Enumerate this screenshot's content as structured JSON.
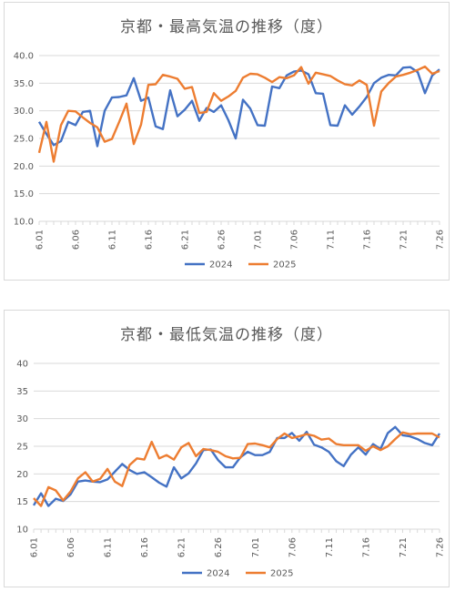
{
  "colors": {
    "s2024": "#4472c4",
    "s2025": "#ed7d31",
    "grid": "#d9d9d9",
    "text": "#595959"
  },
  "chart_data": [
    {
      "type": "line",
      "title": "京都・最高気温の推移（度）",
      "ylim": [
        10,
        40
      ],
      "yticks": [
        "10.0",
        "15.0",
        "20.0",
        "25.0",
        "30.0",
        "35.0",
        "40.0"
      ],
      "xticks": [
        "6.01",
        "6.06",
        "6.11",
        "6.16",
        "6.21",
        "6.26",
        "7.01",
        "7.06",
        "7.11",
        "7.16",
        "7.21",
        "7.26"
      ],
      "x": [
        "6.01",
        "6.02",
        "6.03",
        "6.04",
        "6.05",
        "6.06",
        "6.07",
        "6.08",
        "6.09",
        "6.10",
        "6.11",
        "6.12",
        "6.13",
        "6.14",
        "6.15",
        "6.16",
        "6.17",
        "6.18",
        "6.19",
        "6.20",
        "6.21",
        "6.22",
        "6.23",
        "6.24",
        "6.25",
        "6.26",
        "6.27",
        "6.28",
        "6.29",
        "6.30",
        "7.01",
        "7.02",
        "7.03",
        "7.04",
        "7.05",
        "7.06",
        "7.07",
        "7.08",
        "7.09",
        "7.10",
        "7.11",
        "7.12",
        "7.13",
        "7.14",
        "7.15",
        "7.16",
        "7.17",
        "7.18",
        "7.19",
        "7.20",
        "7.21",
        "7.22",
        "7.23",
        "7.24",
        "7.25",
        "7.26"
      ],
      "legend_position": "bottom",
      "series": [
        {
          "name": "2024",
          "values": [
            28.0,
            25.8,
            23.8,
            24.5,
            28.0,
            27.4,
            29.8,
            30.0,
            23.6,
            30.0,
            32.4,
            32.5,
            32.8,
            35.9,
            31.8,
            32.4,
            27.2,
            26.7,
            33.7,
            29.0,
            30.2,
            31.8,
            28.2,
            30.5,
            29.8,
            31.0,
            28.3,
            25.0,
            32.0,
            30.4,
            27.4,
            27.3,
            34.4,
            34.1,
            36.4,
            37.1,
            37.3,
            36.6,
            33.2,
            33.1,
            27.4,
            27.3,
            31.0,
            29.3,
            30.8,
            32.5,
            35.0,
            36.0,
            36.5,
            36.4,
            37.8,
            37.9,
            37.0,
            33.2,
            36.4,
            37.5
          ]
        },
        {
          "name": "2025",
          "values": [
            22.4,
            28.0,
            20.8,
            27.4,
            30.0,
            29.9,
            28.8,
            27.8,
            27.0,
            24.4,
            24.9,
            28.0,
            31.3,
            24.0,
            27.5,
            34.7,
            34.8,
            36.5,
            36.2,
            35.8,
            34.0,
            34.3,
            29.6,
            29.8,
            33.2,
            31.8,
            32.6,
            33.6,
            36.0,
            36.7,
            36.6,
            36.0,
            35.2,
            36.1,
            35.9,
            36.4,
            37.9,
            34.9,
            36.9,
            36.6,
            36.3,
            35.5,
            34.8,
            34.6,
            35.5,
            34.7,
            27.3,
            33.5,
            35.0,
            36.2,
            36.5,
            36.9,
            37.4,
            38.0,
            36.7,
            37.2
          ]
        }
      ]
    },
    {
      "type": "line",
      "title": "京都・最低気温の推移（度）",
      "ylim": [
        10,
        40
      ],
      "yticks": [
        "10",
        "15",
        "20",
        "25",
        "30",
        "35",
        "40"
      ],
      "xticks": [
        "6.01",
        "6.06",
        "6.11",
        "6.16",
        "6.21",
        "6.26",
        "7.01",
        "7.06",
        "7.11",
        "7.16",
        "7.21",
        "7.26"
      ],
      "x": [
        "6.01",
        "6.02",
        "6.03",
        "6.04",
        "6.05",
        "6.06",
        "6.07",
        "6.08",
        "6.09",
        "6.10",
        "6.11",
        "6.12",
        "6.13",
        "6.14",
        "6.15",
        "6.16",
        "6.17",
        "6.18",
        "6.19",
        "6.20",
        "6.21",
        "6.22",
        "6.23",
        "6.24",
        "6.25",
        "6.26",
        "6.27",
        "6.28",
        "6.29",
        "6.30",
        "7.01",
        "7.02",
        "7.03",
        "7.04",
        "7.05",
        "7.06",
        "7.07",
        "7.08",
        "7.09",
        "7.10",
        "7.11",
        "7.12",
        "7.13",
        "7.14",
        "7.15",
        "7.16",
        "7.17",
        "7.18",
        "7.19",
        "7.20",
        "7.21",
        "7.22",
        "7.23",
        "7.24",
        "7.25",
        "7.26"
      ],
      "legend_position": "bottom",
      "series": [
        {
          "name": "2024",
          "values": [
            14.3,
            16.5,
            14.2,
            15.5,
            15.1,
            16.3,
            18.6,
            18.8,
            18.6,
            18.5,
            19.0,
            20.4,
            21.8,
            20.7,
            20.0,
            20.3,
            19.4,
            18.4,
            17.7,
            21.2,
            19.2,
            20.1,
            21.9,
            24.3,
            24.4,
            22.5,
            21.2,
            21.2,
            23.0,
            24.0,
            23.4,
            23.4,
            24.0,
            26.5,
            26.5,
            27.4,
            26.0,
            27.6,
            25.3,
            24.8,
            24.0,
            22.3,
            21.4,
            23.5,
            24.8,
            23.5,
            25.4,
            24.5,
            27.4,
            28.5,
            27.0,
            26.8,
            26.3,
            25.6,
            25.2,
            27.3
          ]
        },
        {
          "name": "2025",
          "values": [
            15.6,
            14.2,
            17.6,
            17.0,
            15.2,
            16.8,
            19.2,
            20.3,
            18.6,
            19.1,
            20.9,
            18.6,
            17.8,
            21.6,
            22.8,
            22.6,
            25.8,
            22.8,
            23.4,
            22.6,
            24.8,
            25.6,
            23.2,
            24.5,
            24.3,
            24.0,
            23.2,
            22.8,
            22.9,
            25.4,
            25.5,
            25.2,
            24.8,
            26.3,
            27.3,
            26.5,
            26.8,
            27.2,
            26.9,
            26.2,
            26.4,
            25.4,
            25.2,
            25.2,
            25.2,
            24.2,
            25.0,
            24.3,
            25.0,
            26.3,
            27.5,
            27.2,
            27.3,
            27.3,
            27.3,
            26.6
          ]
        }
      ]
    }
  ]
}
